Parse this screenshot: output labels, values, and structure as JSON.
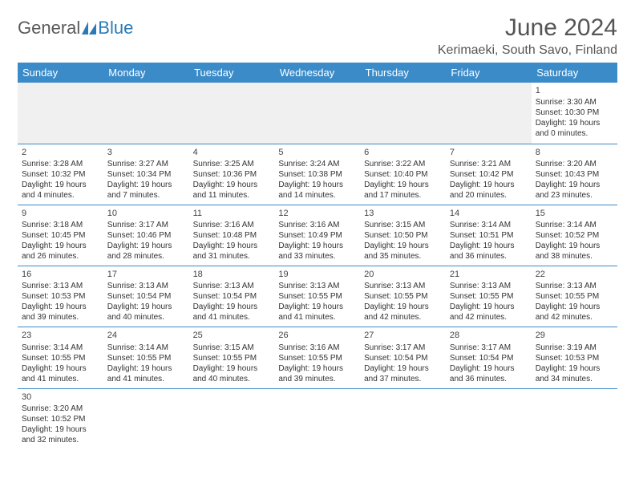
{
  "brand": {
    "part1": "General",
    "part2": "Blue"
  },
  "title": "June 2024",
  "location": "Kerimaeki, South Savo, Finland",
  "colors": {
    "header_bg": "#3b8bc9",
    "header_text": "#ffffff",
    "border": "#3b8bc9",
    "brand_gray": "#5a5a5a",
    "brand_blue": "#2a7ab8",
    "text": "#333333"
  },
  "day_headers": [
    "Sunday",
    "Monday",
    "Tuesday",
    "Wednesday",
    "Thursday",
    "Friday",
    "Saturday"
  ],
  "weeks": [
    [
      null,
      null,
      null,
      null,
      null,
      null,
      {
        "n": "1",
        "sr": "Sunrise: 3:30 AM",
        "ss": "Sunset: 10:30 PM",
        "dl1": "Daylight: 19 hours",
        "dl2": "and 0 minutes."
      }
    ],
    [
      {
        "n": "2",
        "sr": "Sunrise: 3:28 AM",
        "ss": "Sunset: 10:32 PM",
        "dl1": "Daylight: 19 hours",
        "dl2": "and 4 minutes."
      },
      {
        "n": "3",
        "sr": "Sunrise: 3:27 AM",
        "ss": "Sunset: 10:34 PM",
        "dl1": "Daylight: 19 hours",
        "dl2": "and 7 minutes."
      },
      {
        "n": "4",
        "sr": "Sunrise: 3:25 AM",
        "ss": "Sunset: 10:36 PM",
        "dl1": "Daylight: 19 hours",
        "dl2": "and 11 minutes."
      },
      {
        "n": "5",
        "sr": "Sunrise: 3:24 AM",
        "ss": "Sunset: 10:38 PM",
        "dl1": "Daylight: 19 hours",
        "dl2": "and 14 minutes."
      },
      {
        "n": "6",
        "sr": "Sunrise: 3:22 AM",
        "ss": "Sunset: 10:40 PM",
        "dl1": "Daylight: 19 hours",
        "dl2": "and 17 minutes."
      },
      {
        "n": "7",
        "sr": "Sunrise: 3:21 AM",
        "ss": "Sunset: 10:42 PM",
        "dl1": "Daylight: 19 hours",
        "dl2": "and 20 minutes."
      },
      {
        "n": "8",
        "sr": "Sunrise: 3:20 AM",
        "ss": "Sunset: 10:43 PM",
        "dl1": "Daylight: 19 hours",
        "dl2": "and 23 minutes."
      }
    ],
    [
      {
        "n": "9",
        "sr": "Sunrise: 3:18 AM",
        "ss": "Sunset: 10:45 PM",
        "dl1": "Daylight: 19 hours",
        "dl2": "and 26 minutes."
      },
      {
        "n": "10",
        "sr": "Sunrise: 3:17 AM",
        "ss": "Sunset: 10:46 PM",
        "dl1": "Daylight: 19 hours",
        "dl2": "and 28 minutes."
      },
      {
        "n": "11",
        "sr": "Sunrise: 3:16 AM",
        "ss": "Sunset: 10:48 PM",
        "dl1": "Daylight: 19 hours",
        "dl2": "and 31 minutes."
      },
      {
        "n": "12",
        "sr": "Sunrise: 3:16 AM",
        "ss": "Sunset: 10:49 PM",
        "dl1": "Daylight: 19 hours",
        "dl2": "and 33 minutes."
      },
      {
        "n": "13",
        "sr": "Sunrise: 3:15 AM",
        "ss": "Sunset: 10:50 PM",
        "dl1": "Daylight: 19 hours",
        "dl2": "and 35 minutes."
      },
      {
        "n": "14",
        "sr": "Sunrise: 3:14 AM",
        "ss": "Sunset: 10:51 PM",
        "dl1": "Daylight: 19 hours",
        "dl2": "and 36 minutes."
      },
      {
        "n": "15",
        "sr": "Sunrise: 3:14 AM",
        "ss": "Sunset: 10:52 PM",
        "dl1": "Daylight: 19 hours",
        "dl2": "and 38 minutes."
      }
    ],
    [
      {
        "n": "16",
        "sr": "Sunrise: 3:13 AM",
        "ss": "Sunset: 10:53 PM",
        "dl1": "Daylight: 19 hours",
        "dl2": "and 39 minutes."
      },
      {
        "n": "17",
        "sr": "Sunrise: 3:13 AM",
        "ss": "Sunset: 10:54 PM",
        "dl1": "Daylight: 19 hours",
        "dl2": "and 40 minutes."
      },
      {
        "n": "18",
        "sr": "Sunrise: 3:13 AM",
        "ss": "Sunset: 10:54 PM",
        "dl1": "Daylight: 19 hours",
        "dl2": "and 41 minutes."
      },
      {
        "n": "19",
        "sr": "Sunrise: 3:13 AM",
        "ss": "Sunset: 10:55 PM",
        "dl1": "Daylight: 19 hours",
        "dl2": "and 41 minutes."
      },
      {
        "n": "20",
        "sr": "Sunrise: 3:13 AM",
        "ss": "Sunset: 10:55 PM",
        "dl1": "Daylight: 19 hours",
        "dl2": "and 42 minutes."
      },
      {
        "n": "21",
        "sr": "Sunrise: 3:13 AM",
        "ss": "Sunset: 10:55 PM",
        "dl1": "Daylight: 19 hours",
        "dl2": "and 42 minutes."
      },
      {
        "n": "22",
        "sr": "Sunrise: 3:13 AM",
        "ss": "Sunset: 10:55 PM",
        "dl1": "Daylight: 19 hours",
        "dl2": "and 42 minutes."
      }
    ],
    [
      {
        "n": "23",
        "sr": "Sunrise: 3:14 AM",
        "ss": "Sunset: 10:55 PM",
        "dl1": "Daylight: 19 hours",
        "dl2": "and 41 minutes."
      },
      {
        "n": "24",
        "sr": "Sunrise: 3:14 AM",
        "ss": "Sunset: 10:55 PM",
        "dl1": "Daylight: 19 hours",
        "dl2": "and 41 minutes."
      },
      {
        "n": "25",
        "sr": "Sunrise: 3:15 AM",
        "ss": "Sunset: 10:55 PM",
        "dl1": "Daylight: 19 hours",
        "dl2": "and 40 minutes."
      },
      {
        "n": "26",
        "sr": "Sunrise: 3:16 AM",
        "ss": "Sunset: 10:55 PM",
        "dl1": "Daylight: 19 hours",
        "dl2": "and 39 minutes."
      },
      {
        "n": "27",
        "sr": "Sunrise: 3:17 AM",
        "ss": "Sunset: 10:54 PM",
        "dl1": "Daylight: 19 hours",
        "dl2": "and 37 minutes."
      },
      {
        "n": "28",
        "sr": "Sunrise: 3:17 AM",
        "ss": "Sunset: 10:54 PM",
        "dl1": "Daylight: 19 hours",
        "dl2": "and 36 minutes."
      },
      {
        "n": "29",
        "sr": "Sunrise: 3:19 AM",
        "ss": "Sunset: 10:53 PM",
        "dl1": "Daylight: 19 hours",
        "dl2": "and 34 minutes."
      }
    ],
    [
      {
        "n": "30",
        "sr": "Sunrise: 3:20 AM",
        "ss": "Sunset: 10:52 PM",
        "dl1": "Daylight: 19 hours",
        "dl2": "and 32 minutes."
      },
      null,
      null,
      null,
      null,
      null,
      null
    ]
  ]
}
